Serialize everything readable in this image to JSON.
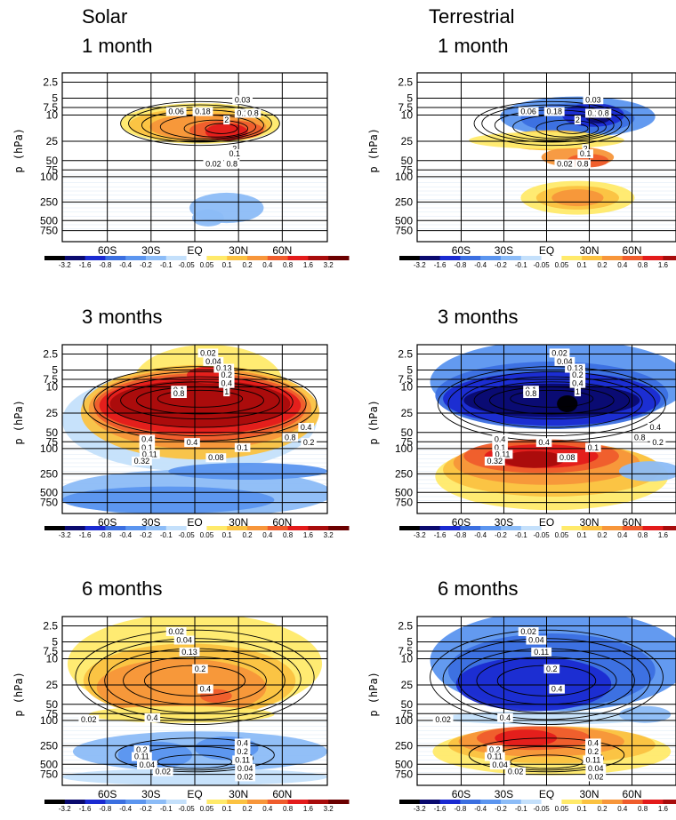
{
  "titles": {
    "solar_1": [
      "Solar",
      "1 month"
    ],
    "terr_1": [
      "Terrestrial",
      "1 month"
    ],
    "solar_3": [
      "3 months"
    ],
    "terr_3": [
      "3 months"
    ],
    "solar_6": [
      "6 months"
    ],
    "terr_6": [
      "6 months"
    ]
  },
  "chart_data": [
    {
      "id": "solar_1",
      "type": "heatmap",
      "title": "Solar 1 month",
      "ylabel": "p (hPa)",
      "yticks": [
        "2.5",
        "5",
        "7.5",
        "10",
        "25",
        "50",
        "75",
        "100",
        "250",
        "500",
        "750"
      ],
      "xticks": [
        "60S",
        "30S",
        "EQ",
        "30N",
        "60N"
      ],
      "colorbar_ticks": [
        "-3.2",
        "-1.6",
        "-0.8",
        "-0.4",
        "-0.2",
        "-0.1",
        "-0.05",
        "0.05",
        "0.1",
        "0.2",
        "0.4",
        "0.8",
        "1.6",
        "3.2"
      ],
      "contour_labels": [
        "0.03",
        "0.06",
        "0.18",
        "2",
        "0.1",
        "0.8",
        "2",
        "0.1",
        "0.02",
        "0.8"
      ]
    },
    {
      "id": "terr_1",
      "type": "heatmap",
      "title": "Terrestrial 1 month",
      "ylabel": "p (hPa)",
      "yticks": [
        "2.5",
        "5",
        "7.5",
        "10",
        "25",
        "50",
        "75",
        "100",
        "250",
        "500",
        "750"
      ],
      "xticks": [
        "60S",
        "30S",
        "EQ",
        "30N",
        "60N"
      ],
      "colorbar_ticks": [
        "-3.2",
        "-1.6",
        "-0.8",
        "-0.4",
        "-0.2",
        "-0.1",
        "-0.05",
        "0.05",
        "0.1",
        "0.2",
        "0.4",
        "0.8",
        "1.6",
        "3.2"
      ],
      "contour_labels": [
        "0.03",
        "0.06",
        "0.18",
        "2",
        "0.1",
        "0.8",
        "2",
        "0.1",
        "0.02",
        "0.8"
      ]
    },
    {
      "id": "solar_3",
      "type": "heatmap",
      "title": "3 months",
      "ylabel": "p (hPa)",
      "yticks": [
        "2.5",
        "5",
        "7.5",
        "10",
        "25",
        "50",
        "75",
        "100",
        "250",
        "500",
        "750"
      ],
      "xticks": [
        "60S",
        "30S",
        "EQ",
        "30N",
        "60N"
      ],
      "colorbar_ticks": [
        "-3.2",
        "-1.6",
        "-0.8",
        "-0.4",
        "-0.2",
        "-0.1",
        "-0.05",
        "0.05",
        "0.1",
        "0.2",
        "0.4",
        "0.8",
        "1.6",
        "3.2"
      ],
      "contour_labels": [
        "0.02",
        "0.04",
        "0.13",
        "0.2",
        "0.4",
        "0.1",
        "0.8",
        "1",
        "0.4",
        "0.1",
        "0.4",
        "0.8",
        "0.4",
        "0.2",
        "0.11",
        "0.32",
        "0.08",
        "0.1"
      ]
    },
    {
      "id": "terr_3",
      "type": "heatmap",
      "title": "3 months",
      "ylabel": "p (hPa)",
      "yticks": [
        "2.5",
        "5",
        "7.5",
        "10",
        "25",
        "50",
        "75",
        "100",
        "250",
        "500",
        "750"
      ],
      "xticks": [
        "60S",
        "30S",
        "EQ",
        "30N",
        "60N"
      ],
      "colorbar_ticks": [
        "-3.2",
        "-1.6",
        "-0.8",
        "-0.4",
        "-0.2",
        "-0.1",
        "-0.05",
        "0.05",
        "0.1",
        "0.2",
        "0.4",
        "0.8",
        "1.6",
        "3.2"
      ],
      "contour_labels": [
        "0.02",
        "0.04",
        "0.13",
        "0.2",
        "0.4",
        "0.1",
        "0.8",
        "1",
        "0.4",
        "0.1",
        "0.4",
        "0.8",
        "0.4",
        "0.2",
        "0.11",
        "0.32",
        "0.08",
        "0.1"
      ]
    },
    {
      "id": "solar_6",
      "type": "heatmap",
      "title": "6 months",
      "ylabel": "p (hPa)",
      "yticks": [
        "2.5",
        "5",
        "7.5",
        "10",
        "25",
        "50",
        "75",
        "100",
        "250",
        "500",
        "750"
      ],
      "xticks": [
        "60S",
        "30S",
        "EQ",
        "30N",
        "60N"
      ],
      "colorbar_ticks": [
        "-3.2",
        "-1.6",
        "-0.8",
        "-0.4",
        "-0.2",
        "-0.1",
        "-0.05",
        "0.05",
        "0.1",
        "0.2",
        "0.4",
        "0.8",
        "1.6",
        "3.2"
      ],
      "contour_labels": [
        "0.02",
        "0.04",
        "0.13",
        "0.2",
        "0.4",
        "0.4",
        "0.02",
        "0.2",
        "0.11",
        "0.04",
        "0.02",
        "0.4",
        "0.2",
        "0.11",
        "0.04",
        "0.02"
      ]
    },
    {
      "id": "terr_6",
      "type": "heatmap",
      "title": "6 months",
      "ylabel": "p (hPa)",
      "yticks": [
        "2.5",
        "5",
        "7.5",
        "10",
        "25",
        "50",
        "75",
        "100",
        "250",
        "500",
        "750"
      ],
      "xticks": [
        "60S",
        "30S",
        "EQ",
        "30N",
        "60N"
      ],
      "colorbar_ticks": [
        "-3.2",
        "-1.6",
        "-0.8",
        "-0.4",
        "-0.2",
        "-0.1",
        "-0.05",
        "0.05",
        "0.1",
        "0.2",
        "0.4",
        "0.8",
        "1.6",
        "3.2"
      ],
      "contour_labels": [
        "0.02",
        "0.04",
        "0.11",
        "0.2",
        "0.4",
        "0.4",
        "0.02",
        "0.2",
        "0.11",
        "0.04",
        "0.02",
        "0.4",
        "0.2",
        "0.11",
        "0.04",
        "0.02"
      ]
    }
  ],
  "colorbar_colors": [
    "#000000",
    "#0a0a6e",
    "#1a2ad1",
    "#3b6fe0",
    "#5b95ef",
    "#8cbcf7",
    "#c4e0fb",
    "#ffffff",
    "#ffea6a",
    "#fbc241",
    "#f7963a",
    "#ef5c2c",
    "#e31b1b",
    "#a80c0c",
    "#6b0000"
  ]
}
